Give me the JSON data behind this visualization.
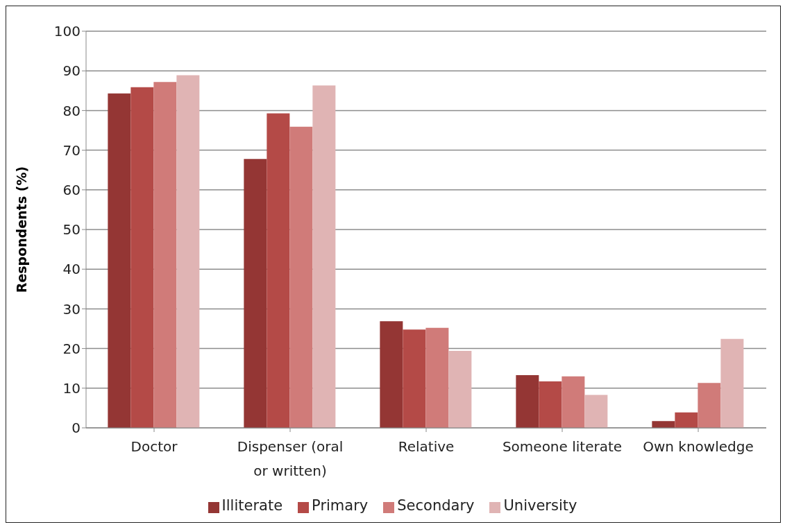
{
  "chart_data": {
    "type": "bar",
    "ylabel": "Respondents (%)",
    "categories": [
      "Doctor",
      "Dispenser (oral or written)",
      "Relative",
      "Someone literate",
      "Own knowledge"
    ],
    "series": [
      {
        "name": "Illiterate",
        "color": "#943634",
        "values": [
          84.3,
          67.8,
          26.9,
          13.3,
          1.7
        ]
      },
      {
        "name": "Primary",
        "color": "#b44a47",
        "values": [
          85.9,
          79.3,
          24.8,
          11.7,
          3.9
        ]
      },
      {
        "name": "Secondary",
        "color": "#d07b79",
        "values": [
          87.2,
          75.9,
          25.2,
          13.0,
          11.3
        ]
      },
      {
        "name": "University",
        "color": "#e0b4b4",
        "values": [
          88.9,
          86.3,
          19.4,
          8.3,
          22.4
        ]
      }
    ],
    "ylim": [
      0,
      100
    ],
    "yticks": [
      0,
      10,
      20,
      30,
      40,
      50,
      60,
      70,
      80,
      90,
      100
    ],
    "grid": "y",
    "legend": "bottom"
  }
}
